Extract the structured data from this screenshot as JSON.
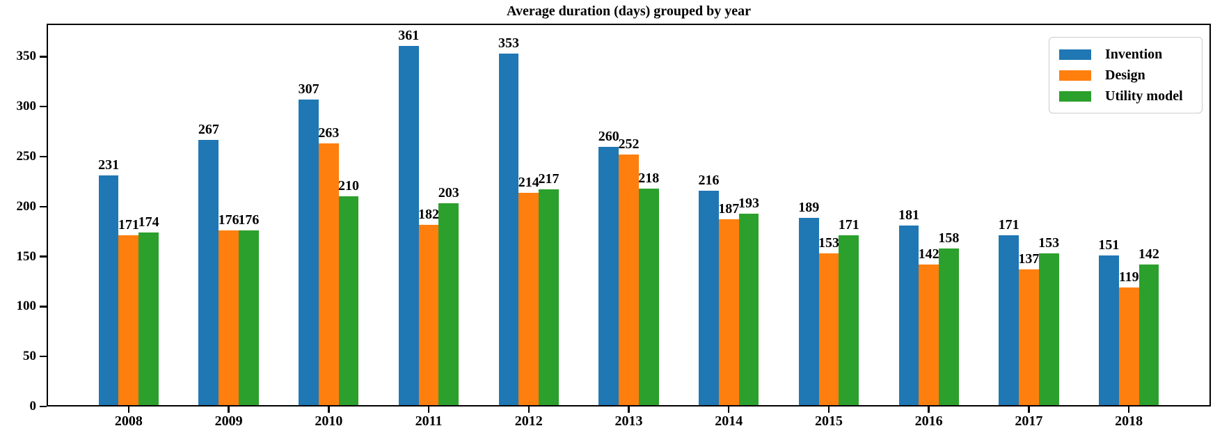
{
  "chart_data": {
    "type": "bar",
    "title": "Average duration (days) grouped by year",
    "categories": [
      "2008",
      "2009",
      "2010",
      "2011",
      "2012",
      "2013",
      "2014",
      "2015",
      "2016",
      "2017",
      "2018"
    ],
    "series": [
      {
        "name": "Invention",
        "color": "#1f77b4",
        "values": [
          231,
          267,
          307,
          361,
          353,
          260,
          216,
          189,
          181,
          171,
          151
        ]
      },
      {
        "name": "Design",
        "color": "#ff7f0e",
        "values": [
          171,
          176,
          263,
          182,
          214,
          252,
          187,
          153,
          142,
          137,
          119
        ]
      },
      {
        "name": "Utility model",
        "color": "#2ca02c",
        "values": [
          174,
          176,
          210,
          203,
          217,
          218,
          193,
          171,
          158,
          153,
          142
        ]
      }
    ],
    "xlabel": "",
    "ylabel": "",
    "ylim": [
      0,
      383
    ],
    "yticks": [
      0,
      50,
      100,
      150,
      200,
      250,
      300,
      350
    ],
    "grid": false,
    "bar_value_labels": true,
    "legend": {
      "position": "upper right",
      "entries": [
        "Invention",
        "Design",
        "Utility model"
      ]
    },
    "axis_color": "#000000",
    "text_color": "#000000",
    "background_color": "#ffffff"
  }
}
